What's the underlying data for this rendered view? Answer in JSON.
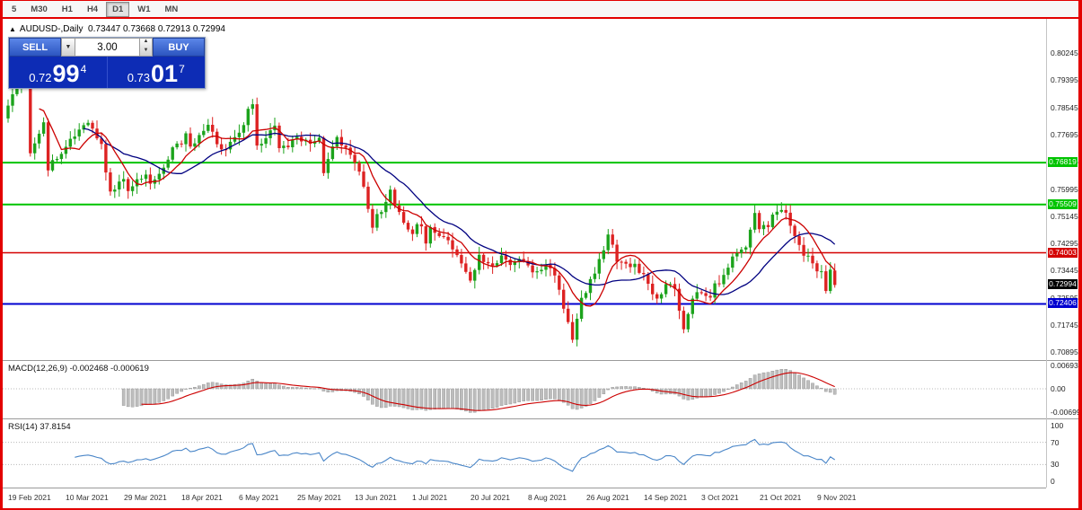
{
  "toolbar": {
    "timeframes": [
      "5",
      "M30",
      "H1",
      "H4",
      "D1",
      "W1",
      "MN"
    ],
    "active": "D1"
  },
  "chart_header": {
    "collapse_icon": "▲",
    "symbol": "AUDUSD-,Daily",
    "ohlc": "0.73447 0.73668 0.72913 0.72994"
  },
  "trade_panel": {
    "sell_label": "SELL",
    "buy_label": "BUY",
    "lot_value": "3.00",
    "dropdown_icon": "▼",
    "spin_up_icon": "▲",
    "spin_down_icon": "▼",
    "sell_price_prefix": "0.72",
    "sell_price_big": "99",
    "sell_price_sup": "4",
    "buy_price_prefix": "0.73",
    "buy_price_big": "01",
    "buy_price_sup": "7"
  },
  "macd": {
    "label": "MACD(12,26,9) -0.002468 -0.000619",
    "axis_values": [
      0.006936,
      0,
      -0.006993
    ],
    "axis_labels": [
      "0.006936",
      "0.00",
      "-0.006993"
    ]
  },
  "rsi": {
    "label": "RSI(14) 37.8154",
    "axis_values": [
      100,
      70,
      30,
      0
    ],
    "axis_labels": [
      "100",
      "70",
      "30",
      "0"
    ]
  },
  "colors": {
    "bull": "#1ca31c",
    "bear": "#dd2222",
    "ma_fast": "#cc0000",
    "ma_slow": "#000080",
    "macd_hist_fill": "#bdbdbd",
    "macd_hist_stroke": "#8e8e8e",
    "macd_signal": "#cc0000",
    "rsi_line": "#4a86c8",
    "level_dotted": "#b8b8b8",
    "current_badge": "#000000"
  },
  "chart_data": {
    "type": "candlestick",
    "symbol": "AUDUSD",
    "timeframe": "Daily",
    "title": "AUDUSD-,Daily",
    "last_ohlc": {
      "open": 0.73447,
      "high": 0.73668,
      "low": 0.72913,
      "close": 0.72994
    },
    "current_price": {
      "value": 0.72994,
      "label": "0.72994"
    },
    "y_axis_labels": [
      "0.80245",
      "0.79395",
      "0.78545",
      "0.77695",
      "0.76845",
      "0.75995",
      "0.75145",
      "0.74295",
      "0.73445",
      "0.72595",
      "0.71745",
      "0.70895"
    ],
    "x_axis_labels": [
      "19 Feb 2021",
      "10 Mar 2021",
      "29 Mar 2021",
      "18 Apr 2021",
      "6 May 2021",
      "25 May 2021",
      "13 Jun 2021",
      "1 Jul 2021",
      "20 Jul 2021",
      "8 Aug 2021",
      "26 Aug 2021",
      "14 Sep 2021",
      "3 Oct 2021",
      "21 Oct 2021",
      "9 Nov 2021"
    ],
    "candles_per_x_label": 13,
    "total_candles": 187,
    "h_lines": [
      {
        "price": 0.76819,
        "label": "0.76819",
        "color": "#00c400",
        "width": 2
      },
      {
        "price": 0.75509,
        "label": "0.75509",
        "color": "#00c400",
        "width": 2
      },
      {
        "price": 0.74003,
        "label": "0.74003",
        "color": "#d40000",
        "width": 1.4
      },
      {
        "price": 0.72406,
        "label": "0.72406",
        "color": "#0000d0",
        "width": 2
      }
    ],
    "close_path_anchors": [
      [
        0,
        0.786
      ],
      [
        2,
        0.7915
      ],
      [
        4,
        0.7955
      ],
      [
        5,
        0.771
      ],
      [
        8,
        0.7815
      ],
      [
        9,
        0.767
      ],
      [
        13,
        0.7725
      ],
      [
        16,
        0.7785
      ],
      [
        18,
        0.78
      ],
      [
        21,
        0.7745
      ],
      [
        23,
        0.758
      ],
      [
        26,
        0.764
      ],
      [
        27,
        0.7595
      ],
      [
        31,
        0.765
      ],
      [
        32,
        0.761
      ],
      [
        37,
        0.7725
      ],
      [
        40,
        0.7765
      ],
      [
        41,
        0.7725
      ],
      [
        45,
        0.78
      ],
      [
        48,
        0.7715
      ],
      [
        52,
        0.778
      ],
      [
        55,
        0.787
      ],
      [
        56,
        0.7725
      ],
      [
        60,
        0.779
      ],
      [
        61,
        0.7725
      ],
      [
        65,
        0.775
      ],
      [
        70,
        0.7755
      ],
      [
        71,
        0.766
      ],
      [
        74,
        0.7755
      ],
      [
        77,
        0.7705
      ],
      [
        80,
        0.761
      ],
      [
        82,
        0.748
      ],
      [
        84,
        0.754
      ],
      [
        86,
        0.7585
      ],
      [
        89,
        0.7495
      ],
      [
        91,
        0.7465
      ],
      [
        93,
        0.7495
      ],
      [
        94,
        0.7435
      ],
      [
        95,
        0.7485
      ],
      [
        98,
        0.7445
      ],
      [
        100,
        0.742
      ],
      [
        103,
        0.7335
      ],
      [
        104,
        0.7315
      ],
      [
        106,
        0.7385
      ],
      [
        109,
        0.7355
      ],
      [
        111,
        0.7395
      ],
      [
        113,
        0.736
      ],
      [
        115,
        0.7385
      ],
      [
        117,
        0.7355
      ],
      [
        119,
        0.7345
      ],
      [
        121,
        0.737
      ],
      [
        123,
        0.7335
      ],
      [
        125,
        0.7235
      ],
      [
        127,
        0.7135
      ],
      [
        129,
        0.7255
      ],
      [
        131,
        0.731
      ],
      [
        133,
        0.737
      ],
      [
        135,
        0.745
      ],
      [
        137,
        0.7385
      ],
      [
        139,
        0.7365
      ],
      [
        141,
        0.737
      ],
      [
        143,
        0.7325
      ],
      [
        144,
        0.7295
      ],
      [
        146,
        0.7255
      ],
      [
        148,
        0.729
      ],
      [
        150,
        0.729
      ],
      [
        152,
        0.717
      ],
      [
        154,
        0.726
      ],
      [
        156,
        0.7285
      ],
      [
        158,
        0.727
      ],
      [
        160,
        0.7315
      ],
      [
        162,
        0.735
      ],
      [
        164,
        0.741
      ],
      [
        166,
        0.7415
      ],
      [
        168,
        0.7515
      ],
      [
        169,
        0.7465
      ],
      [
        171,
        0.749
      ],
      [
        173,
        0.754
      ],
      [
        175,
        0.752
      ],
      [
        177,
        0.7445
      ],
      [
        179,
        0.74
      ],
      [
        181,
        0.737
      ],
      [
        183,
        0.733
      ],
      [
        184,
        0.728
      ],
      [
        185,
        0.7345
      ],
      [
        186,
        0.72994
      ]
    ],
    "indicators": [
      {
        "name": "MACD",
        "params": "12,26,9",
        "values": [
          -0.002468,
          -0.000619
        ]
      },
      {
        "name": "RSI",
        "params": "14",
        "values": [
          37.8154
        ]
      },
      {
        "name": "MA fast (red)",
        "type": "sma",
        "period": 8
      },
      {
        "name": "MA slow (blue)",
        "type": "sma",
        "period": 18
      }
    ],
    "y_axis_range": [
      0.70895,
      0.80245
    ],
    "grid": false,
    "legend_position": "none"
  }
}
